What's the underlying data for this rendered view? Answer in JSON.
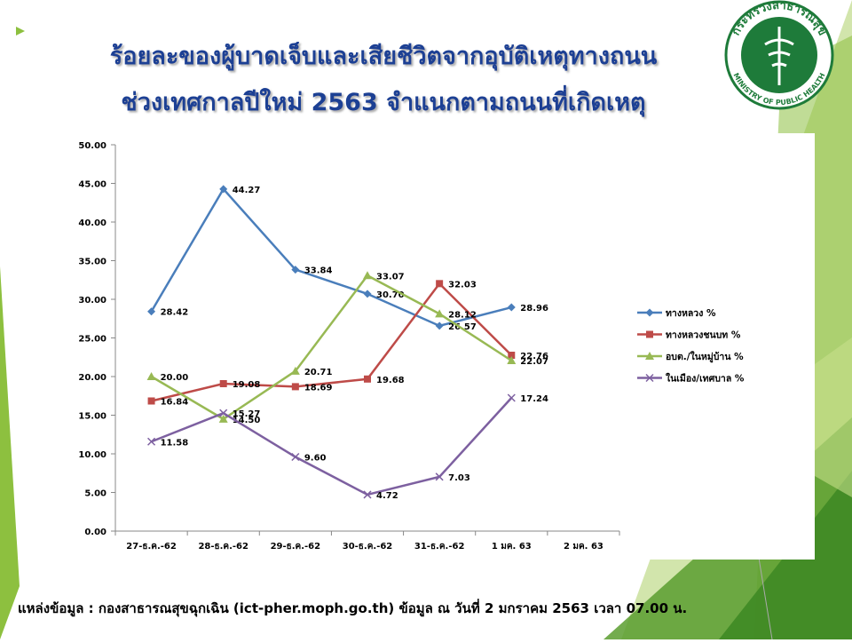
{
  "logo": {
    "top_text": "กระทรวงสาธารณสุข",
    "bottom_text": "MINISTRY OF PUBLIC HEALTH"
  },
  "footer": "แหล่งข้อมูล : กองสาธารณสุขฉุกเฉิน (ict-pher.moph.go.th) ข้อมูล ณ วันที่  2 มกราคม 2563 เวลา 07.00 น.",
  "chart_data": {
    "type": "line",
    "title": [
      "ร้อยละของผู้บาดเจ็บและเสียชีวิตจากอุบัติเหตุทางถนน",
      "ช่วงเทศกาลปีใหม่ 2563  จำแนกตามถนนที่เกิดเหตุ"
    ],
    "categories": [
      "27-ธ.ค.-62",
      "28-ธ.ค.-62",
      "29-ธ.ค.-62",
      "30-ธ.ค.-62",
      "31-ธ.ค.-62",
      "1 มค. 63",
      "2 มค. 63"
    ],
    "ylim": [
      0,
      50
    ],
    "yticks": [
      {
        "value": 0,
        "label": "0.00"
      },
      {
        "value": 5,
        "label": "5.00"
      },
      {
        "value": 10,
        "label": "10.00"
      },
      {
        "value": 15,
        "label": "15.00"
      },
      {
        "value": 20,
        "label": "20.00"
      },
      {
        "value": 25,
        "label": "25.00"
      },
      {
        "value": 30,
        "label": "30.00"
      },
      {
        "value": 35,
        "label": "35.00"
      },
      {
        "value": 40,
        "label": "40.00"
      },
      {
        "value": 45,
        "label": "45.00"
      },
      {
        "value": 50,
        "label": "50.00"
      }
    ],
    "grid": false,
    "legend": "right",
    "series": [
      {
        "name": "ทางหลวง %",
        "color": "#4a7ebb",
        "marker": "diamond",
        "values": [
          28.42,
          44.27,
          33.84,
          30.7,
          26.57,
          28.96,
          null
        ],
        "value_labels": [
          "28.42",
          "44.27",
          "33.84",
          "30.70",
          "26.57",
          "28.96",
          null
        ]
      },
      {
        "name": "ทางหลวงชนบท %",
        "color": "#be4b48",
        "marker": "square",
        "values": [
          16.84,
          19.08,
          18.69,
          19.68,
          32.03,
          22.76,
          null
        ],
        "value_labels": [
          "16.84",
          "19.08",
          "18.69",
          "19.68",
          "32.03",
          "22.76",
          null
        ]
      },
      {
        "name": "อบต./ในหมู่บ้าน %",
        "color": "#98b954",
        "marker": "triangle",
        "values": [
          20,
          14.5,
          20.71,
          33.07,
          28.12,
          22.07,
          null
        ],
        "value_labels": [
          "20.00",
          "14.50",
          "20.71",
          "33.07",
          "28.12",
          "22.07",
          null
        ]
      },
      {
        "name": "ในเมือง/เทศบาล %",
        "color": "#7d60a0",
        "marker": "x",
        "values": [
          11.58,
          15.27,
          9.6,
          4.72,
          7.03,
          17.24,
          null
        ],
        "value_labels": [
          "11.58",
          "15.27",
          "9.60",
          "4.72",
          "7.03",
          "17.24",
          null
        ]
      }
    ]
  }
}
